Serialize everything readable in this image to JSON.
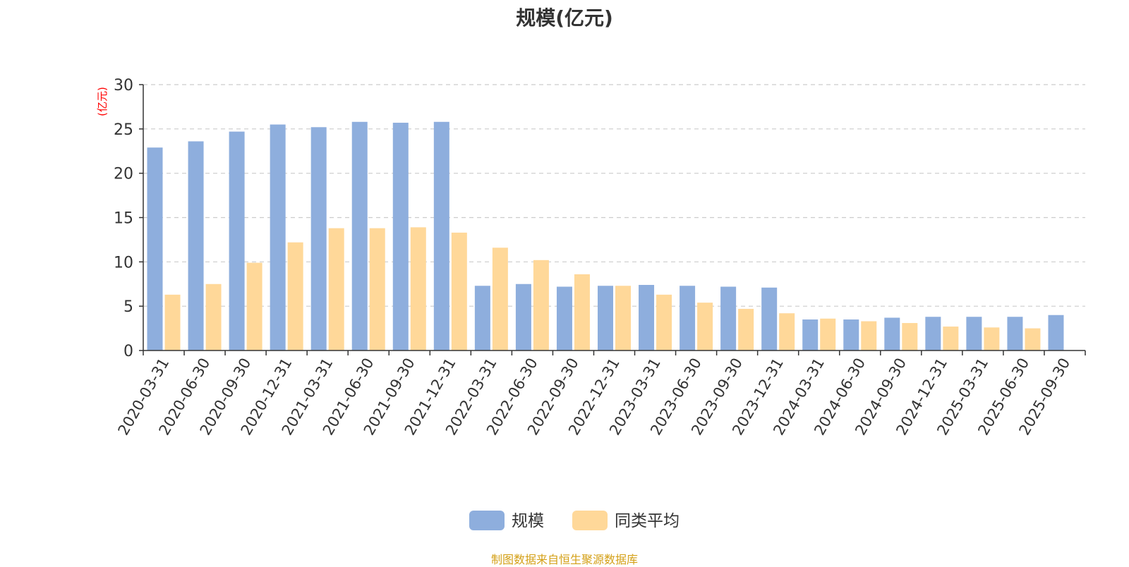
{
  "chart_data": {
    "type": "bar",
    "title": "规模(亿元)",
    "ylabel": "(亿元)",
    "xlabel": "",
    "ylim": [
      0,
      30
    ],
    "yticks": [
      0,
      5,
      10,
      15,
      20,
      25,
      30
    ],
    "grid": true,
    "legend_position": "bottom",
    "categories": [
      "2020-03-31",
      "2020-06-30",
      "2020-09-30",
      "2020-12-31",
      "2021-03-31",
      "2021-06-30",
      "2021-09-30",
      "2021-12-31",
      "2022-03-31",
      "2022-06-30",
      "2022-09-30",
      "2022-12-31",
      "2023-03-31",
      "2023-06-30",
      "2023-09-30",
      "2023-12-31",
      "2024-03-31",
      "2024-06-30",
      "2024-09-30",
      "2024-12-31",
      "2025-03-31",
      "2025-06-30",
      "2025-09-30"
    ],
    "series": [
      {
        "name": "规模",
        "color": "#8eaedd",
        "values": [
          22.9,
          23.6,
          24.7,
          25.5,
          25.2,
          25.8,
          25.7,
          25.8,
          7.3,
          7.5,
          7.2,
          7.3,
          7.4,
          7.3,
          7.2,
          7.1,
          3.5,
          3.5,
          3.7,
          3.8,
          3.8,
          3.8,
          4.0
        ]
      },
      {
        "name": "同类平均",
        "color": "#ffd899",
        "values": [
          6.3,
          7.5,
          9.9,
          12.2,
          13.8,
          13.8,
          13.9,
          13.3,
          11.6,
          10.2,
          8.6,
          7.3,
          6.3,
          5.4,
          4.7,
          4.2,
          3.6,
          3.3,
          3.1,
          2.7,
          2.6,
          2.5,
          null
        ]
      }
    ]
  },
  "source_note": "制图数据来自恒生聚源数据库",
  "colors": {
    "axis": "#333333",
    "grid": "#cccccc",
    "ylabel": "#ff0000",
    "title": "#333333",
    "source": "#d4a017"
  }
}
